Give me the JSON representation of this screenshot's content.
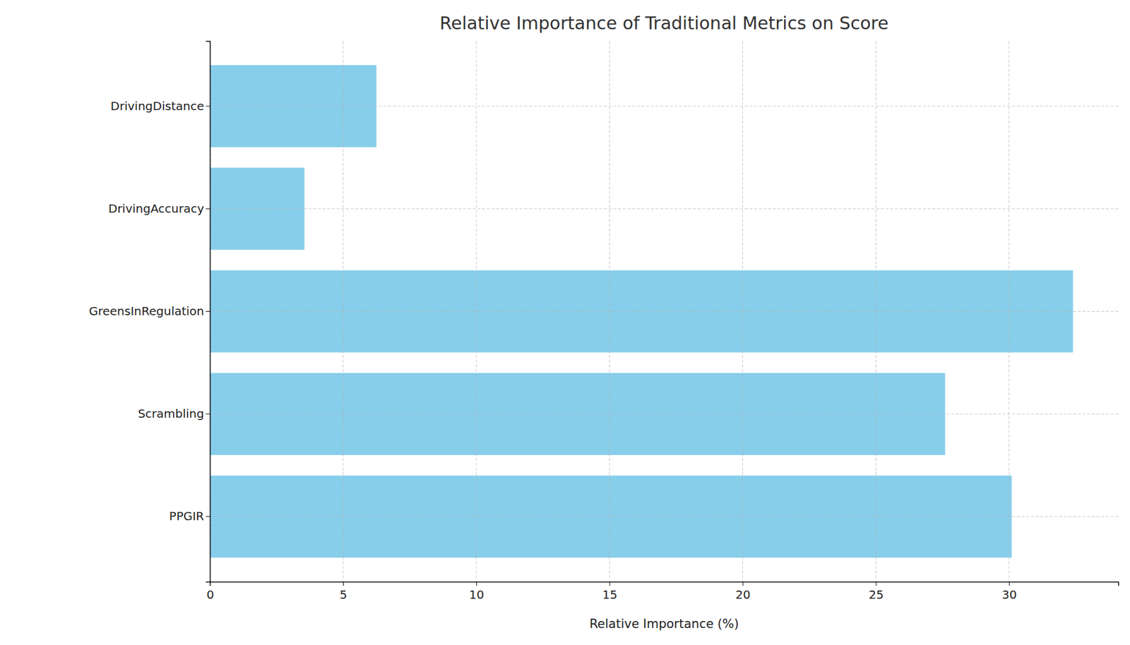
{
  "chart_data": {
    "type": "bar",
    "orientation": "horizontal",
    "title": "Relative Importance of Traditional Metrics on Score",
    "x_label": "Relative Importance (%)",
    "categories": [
      "PPGIR",
      "Scrambling",
      "GreensInRegulation",
      "DrivingAccuracy",
      "DrivingDistance"
    ],
    "values": [
      30.1,
      27.6,
      32.4,
      3.55,
      6.25
    ],
    "color": "#87ceeb",
    "xlim": [
      0,
      34.1
    ],
    "xticks": [
      0,
      5,
      10,
      15,
      20,
      25,
      30
    ],
    "grid": true
  }
}
